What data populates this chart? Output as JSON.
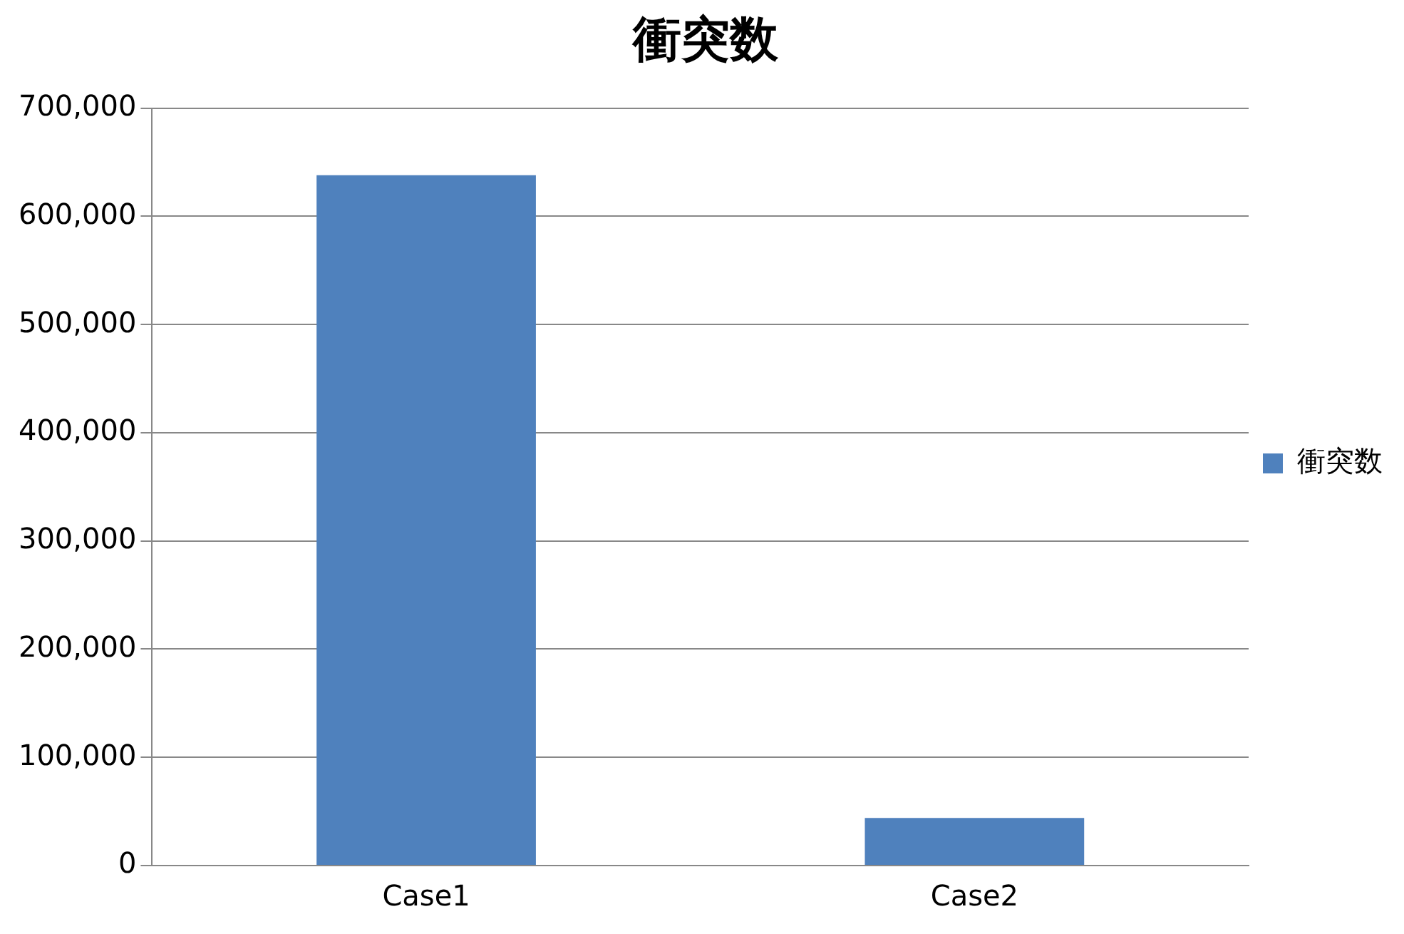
{
  "chart_data": {
    "type": "bar",
    "title": "衝突数",
    "categories": [
      "Case1",
      "Case2"
    ],
    "series": [
      {
        "name": "衝突数",
        "color": "#4f81bd",
        "values": [
          638000,
          44000
        ]
      }
    ],
    "ylim": [
      0,
      700000
    ],
    "yticks": [
      0,
      {
        "value": 100000,
        "label": "100,000"
      },
      {
        "value": 200000,
        "label": "200,000"
      },
      {
        "value": 300000,
        "label": "300,000"
      },
      {
        "value": 400000,
        "label": "400,000"
      },
      {
        "value": 500000,
        "label": "500,000"
      },
      {
        "value": 600000,
        "label": "600,000"
      },
      {
        "value": 700000,
        "label": "700,000"
      }
    ],
    "grid": "y",
    "legend": "right"
  }
}
